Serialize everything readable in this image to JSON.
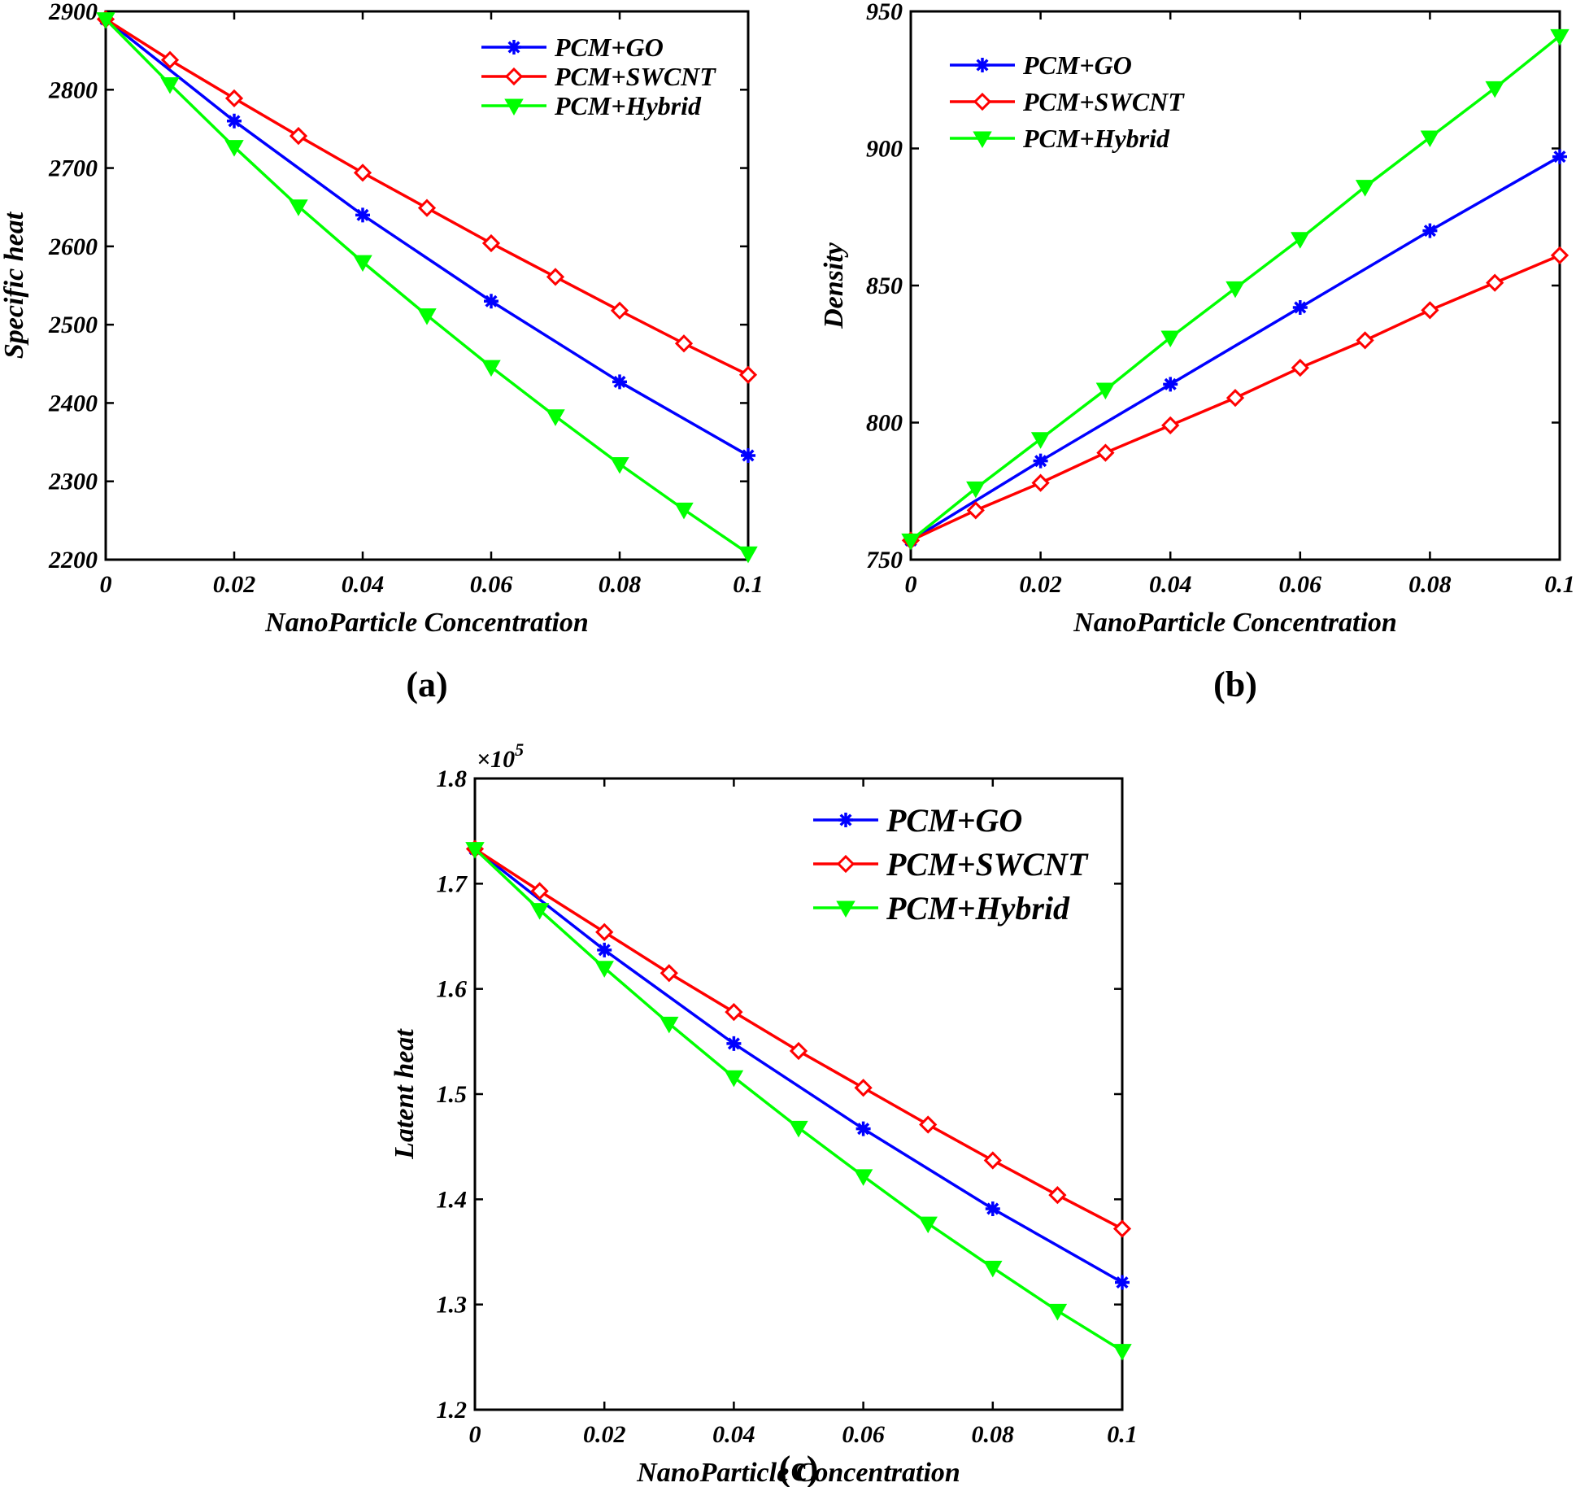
{
  "chart_data": [
    {
      "id": "a",
      "type": "line",
      "caption": "(a)",
      "xlabel": "NanoParticle Concentration",
      "ylabel": "Specific heat",
      "xlim": [
        0,
        0.1
      ],
      "ylim": [
        2200,
        2900
      ],
      "xticks": [
        "0",
        "0.02",
        "0.04",
        "0.06",
        "0.08",
        "0.1"
      ],
      "yticks": [
        "2200",
        "2300",
        "2400",
        "2500",
        "2600",
        "2700",
        "2800",
        "2900"
      ],
      "legend_position": "top-right",
      "series": [
        {
          "name": "PCM+GO",
          "color": "#0000ff",
          "marker": "star",
          "x": [
            0,
            0.02,
            0.04,
            0.06,
            0.08,
            0.1
          ],
          "y": [
            2890,
            2760,
            2640,
            2530,
            2427,
            2333
          ]
        },
        {
          "name": "PCM+SWCNT",
          "color": "#ff0000",
          "marker": "diamond",
          "x": [
            0,
            0.01,
            0.02,
            0.03,
            0.04,
            0.05,
            0.06,
            0.07,
            0.08,
            0.09,
            0.1
          ],
          "y": [
            2890,
            2838,
            2789,
            2741,
            2694,
            2649,
            2604,
            2561,
            2518,
            2476,
            2436
          ]
        },
        {
          "name": "PCM+Hybrid",
          "color": "#00ff00",
          "marker": "triangle-down",
          "x": [
            0,
            0.01,
            0.02,
            0.03,
            0.04,
            0.05,
            0.06,
            0.07,
            0.08,
            0.09,
            0.1
          ],
          "y": [
            2890,
            2807,
            2727,
            2651,
            2580,
            2512,
            2446,
            2383,
            2322,
            2264,
            2208
          ]
        }
      ]
    },
    {
      "id": "b",
      "type": "line",
      "caption": "(b)",
      "xlabel": "NanoParticle Concentration",
      "ylabel": "Density",
      "xlim": [
        0,
        0.1
      ],
      "ylim": [
        750,
        950
      ],
      "xticks": [
        "0",
        "0.02",
        "0.04",
        "0.06",
        "0.08",
        "0.1"
      ],
      "yticks": [
        "750",
        "800",
        "850",
        "900",
        "950"
      ],
      "legend_position": "top-left",
      "series": [
        {
          "name": "PCM+GO",
          "color": "#0000ff",
          "marker": "star",
          "x": [
            0,
            0.02,
            0.04,
            0.06,
            0.08,
            0.1
          ],
          "y": [
            757,
            786,
            814,
            842,
            870,
            897
          ]
        },
        {
          "name": "PCM+SWCNT",
          "color": "#ff0000",
          "marker": "diamond",
          "x": [
            0,
            0.01,
            0.02,
            0.03,
            0.04,
            0.05,
            0.06,
            0.07,
            0.08,
            0.09,
            0.1
          ],
          "y": [
            757,
            768,
            778,
            789,
            799,
            809,
            820,
            830,
            841,
            851,
            861
          ]
        },
        {
          "name": "PCM+Hybrid",
          "color": "#00ff00",
          "marker": "triangle-down",
          "x": [
            0,
            0.01,
            0.02,
            0.03,
            0.04,
            0.05,
            0.06,
            0.07,
            0.08,
            0.09,
            0.1
          ],
          "y": [
            757,
            776,
            794,
            812,
            831,
            849,
            867,
            886,
            904,
            922,
            941
          ]
        }
      ]
    },
    {
      "id": "c",
      "type": "line",
      "caption": "(c)",
      "xlabel": "NanoParticle Concentration",
      "ylabel": "Latent heat",
      "exponent_label": "×10",
      "exponent_power": "5",
      "xlim": [
        0,
        0.1
      ],
      "ylim": [
        1.2,
        1.8
      ],
      "xticks": [
        "0",
        "0.02",
        "0.04",
        "0.06",
        "0.08",
        "0.1"
      ],
      "yticks": [
        "1.2",
        "1.3",
        "1.4",
        "1.5",
        "1.6",
        "1.7",
        "1.8"
      ],
      "legend_position": "top-right",
      "series": [
        {
          "name": "PCM+GO",
          "color": "#0000ff",
          "marker": "star",
          "x": [
            0,
            0.02,
            0.04,
            0.06,
            0.08,
            0.1
          ],
          "y": [
            1.733,
            1.637,
            1.548,
            1.467,
            1.391,
            1.321
          ]
        },
        {
          "name": "PCM+SWCNT",
          "color": "#ff0000",
          "marker": "diamond",
          "x": [
            0,
            0.01,
            0.02,
            0.03,
            0.04,
            0.05,
            0.06,
            0.07,
            0.08,
            0.09,
            0.1
          ],
          "y": [
            1.733,
            1.693,
            1.654,
            1.615,
            1.578,
            1.541,
            1.506,
            1.471,
            1.437,
            1.404,
            1.372
          ]
        },
        {
          "name": "PCM+Hybrid",
          "color": "#00ff00",
          "marker": "triangle-down",
          "x": [
            0,
            0.01,
            0.02,
            0.03,
            0.04,
            0.05,
            0.06,
            0.07,
            0.08,
            0.09,
            0.1
          ],
          "y": [
            1.733,
            1.675,
            1.62,
            1.567,
            1.516,
            1.468,
            1.422,
            1.377,
            1.335,
            1.294,
            1.256
          ]
        }
      ]
    }
  ]
}
